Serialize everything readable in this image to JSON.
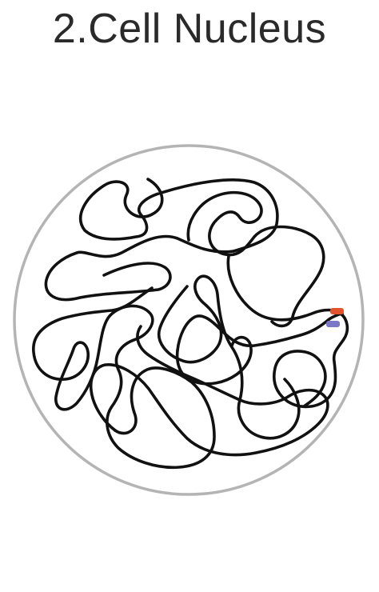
{
  "title": "2.Cell Nucleus",
  "colors": {
    "membrane": "#b4b4b4",
    "chromatin": "#111111",
    "marker_top": "#e0552b",
    "marker_bottom": "#7a78c4",
    "title_text": "#2a2a2a"
  }
}
